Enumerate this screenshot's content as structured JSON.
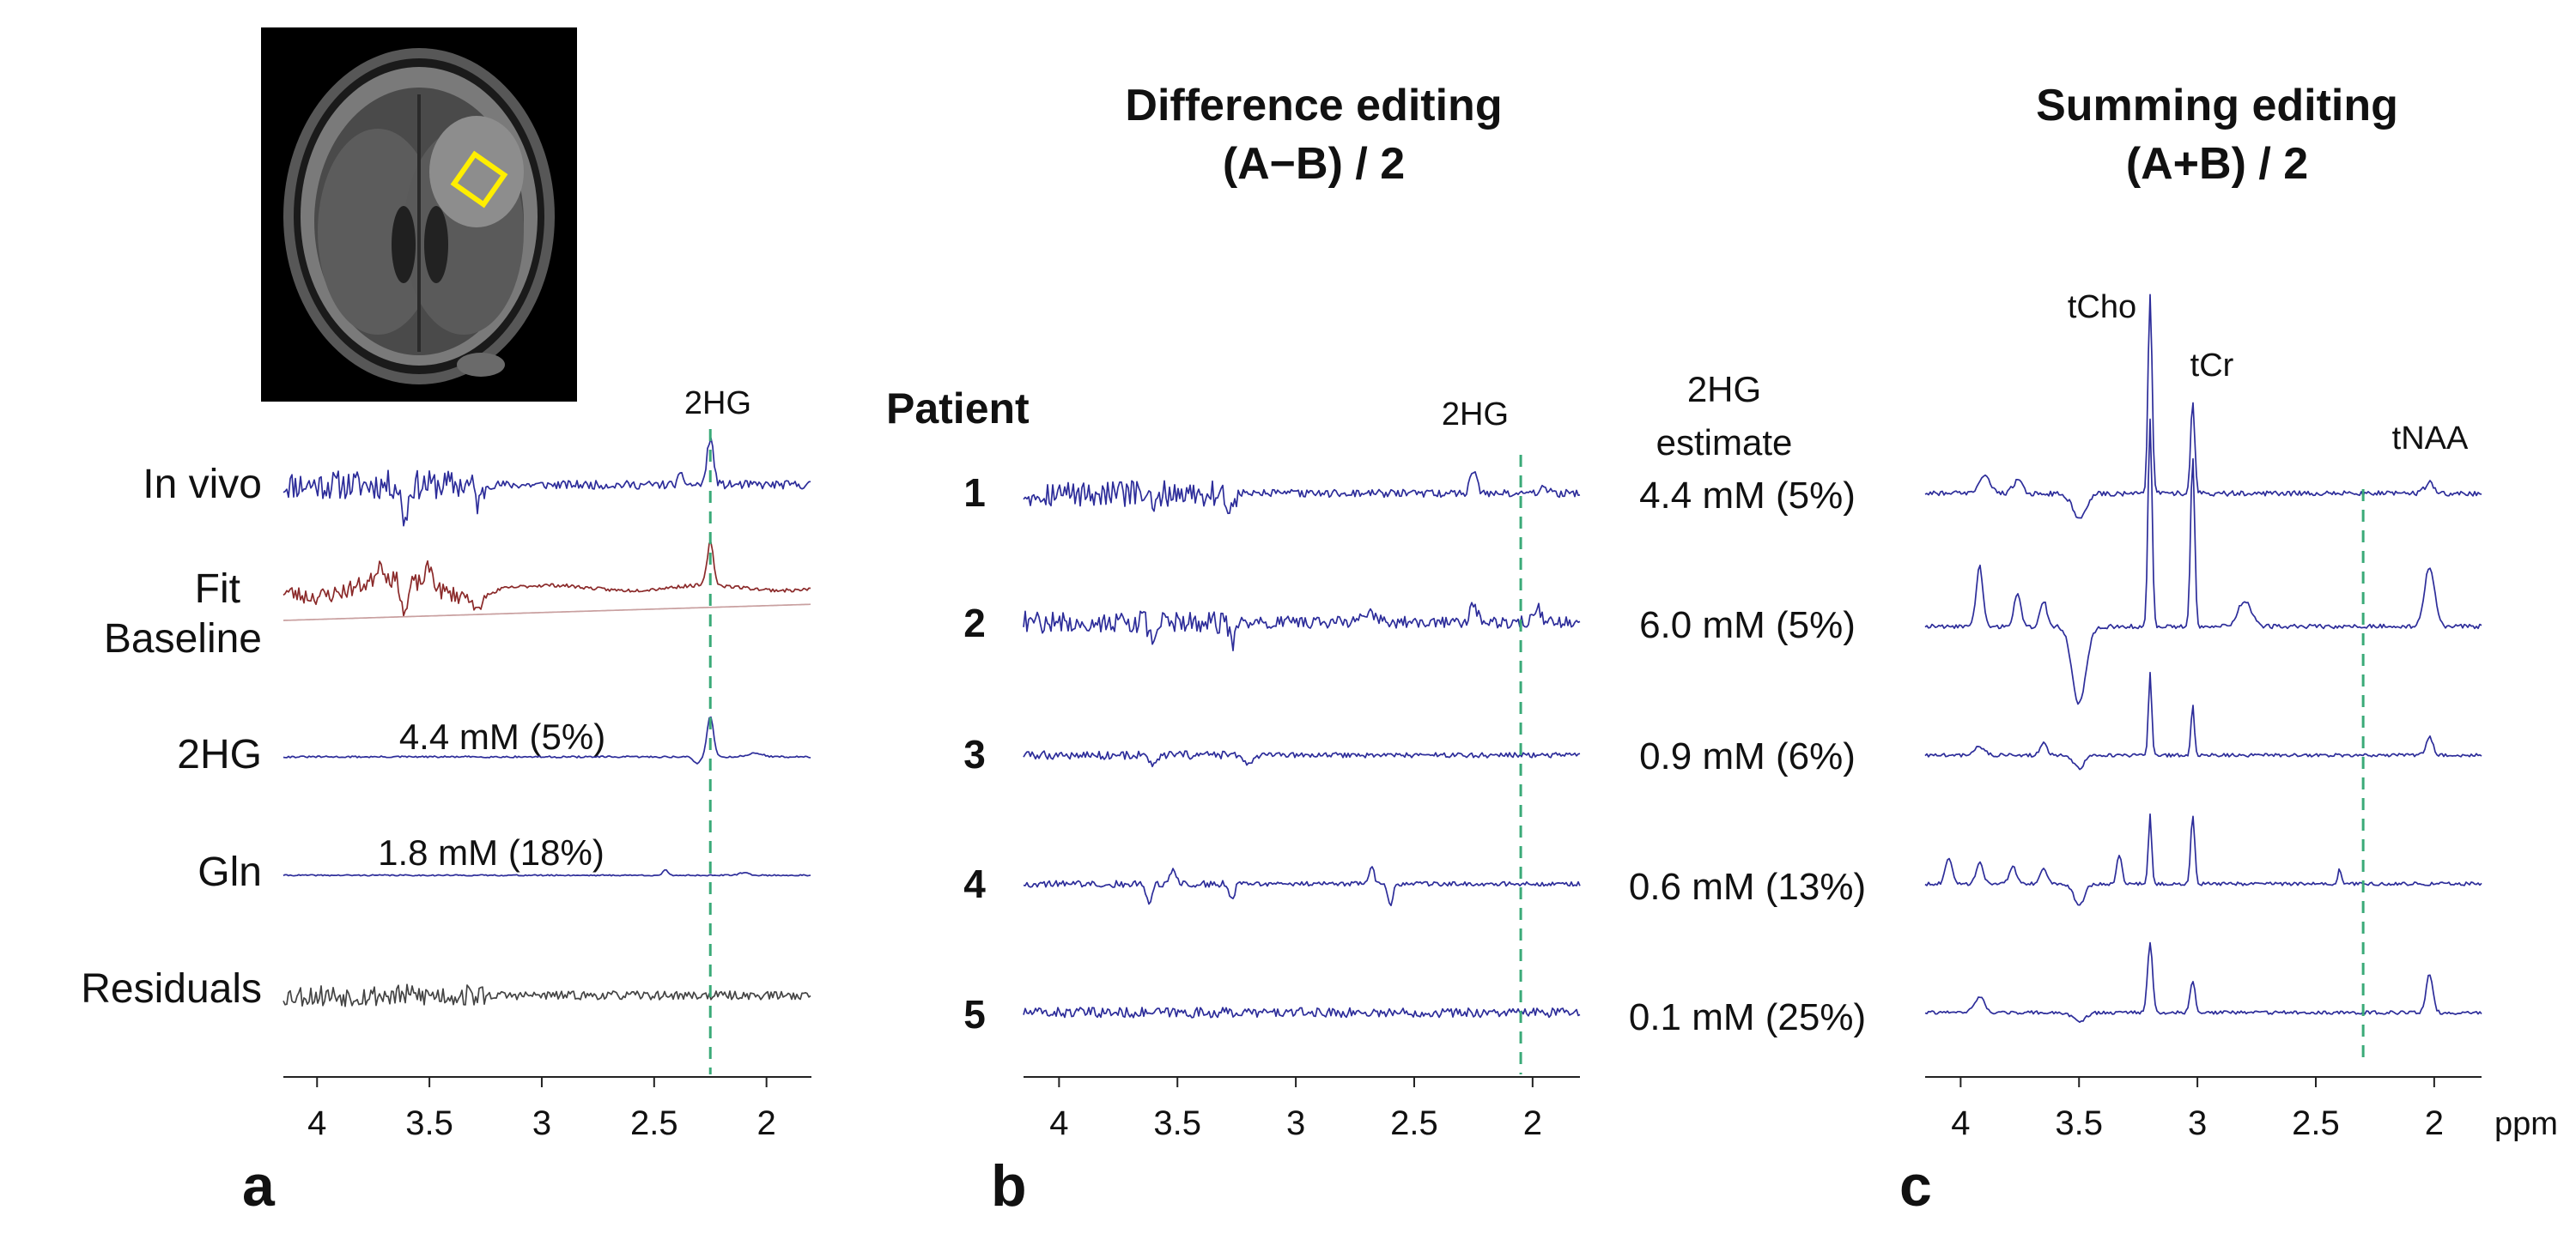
{
  "figure": {
    "colors": {
      "spectrum": "#2d2d9a",
      "fit": "#8b2a2a",
      "baseline": "#c9a0a0",
      "residual": "#444444",
      "marker": "#3aaa78",
      "roi": "#ffee00"
    },
    "panel_a": {
      "letter": "a",
      "peak_label": "2HG",
      "marker_ppm": 2.25,
      "rows": [
        {
          "label": "In vivo",
          "trace": "invivo"
        },
        {
          "label": "Fit",
          "trace": "fit"
        },
        {
          "label": "Baseline",
          "trace": "baseline"
        },
        {
          "label": "2HG",
          "trace": "hg",
          "annotation": "4.4 mM (5%)"
        },
        {
          "label": "Gln",
          "trace": "gln",
          "annotation": "1.8 mM (18%)"
        },
        {
          "label": "Residuals",
          "trace": "residual"
        }
      ],
      "ticks": [
        "4",
        "3.5",
        "3",
        "2.5",
        "2"
      ],
      "tick_values": [
        4,
        3.5,
        3,
        2.5,
        2
      ]
    },
    "panel_b": {
      "letter": "b",
      "title_line1": "Difference editing",
      "title_line2": "(A−B) / 2",
      "patient_header": "Patient",
      "peak_label": "2HG",
      "estimate_header_line1": "2HG",
      "estimate_header_line2": "estimate",
      "marker_ppm": 2.05,
      "patients": [
        {
          "id": "1",
          "estimate": "4.4 mM (5%)"
        },
        {
          "id": "2",
          "estimate": "6.0 mM (5%)"
        },
        {
          "id": "3",
          "estimate": "0.9 mM (6%)"
        },
        {
          "id": "4",
          "estimate": "0.6 mM (13%)"
        },
        {
          "id": "5",
          "estimate": "0.1 mM (25%)"
        }
      ],
      "ticks": [
        "4",
        "3.5",
        "3",
        "2.5",
        "2"
      ],
      "tick_values": [
        4,
        3.5,
        3,
        2.5,
        2
      ]
    },
    "panel_c": {
      "letter": "c",
      "title_line1": "Summing editing",
      "title_line2": "(A+B) / 2",
      "peak_labels": {
        "tcho": "tCho",
        "tcr": "tCr",
        "tnaa": "tNAA"
      },
      "marker_ppm": 2.3,
      "ticks": [
        "4",
        "3.5",
        "3",
        "2.5",
        "2"
      ],
      "tick_values": [
        4,
        3.5,
        3,
        2.5,
        2
      ],
      "unit": "ppm"
    }
  }
}
